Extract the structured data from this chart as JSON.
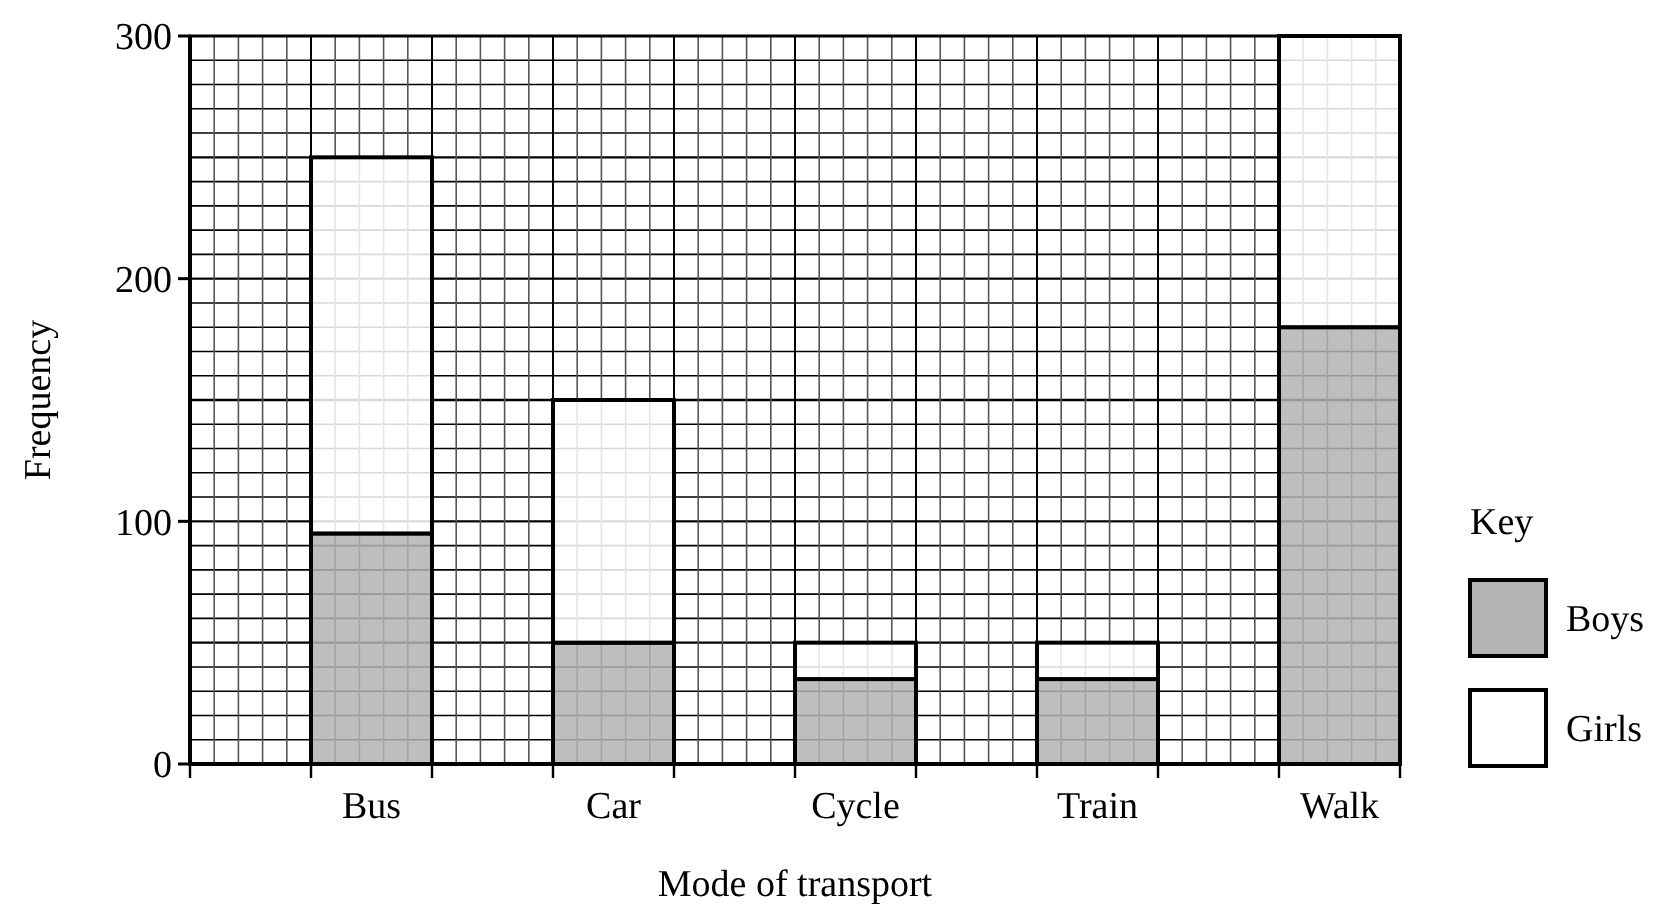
{
  "chart_data": {
    "type": "bar",
    "stacked": true,
    "xlabel": "Mode of transport",
    "ylabel": "Frequency",
    "legend_title": "Key",
    "legend": "right",
    "categories": [
      "Bus",
      "Car",
      "Cycle",
      "Train",
      "Walk"
    ],
    "series": [
      {
        "name": "Boys",
        "color": "#b3b3b3",
        "values": [
          95,
          50,
          35,
          35,
          180
        ]
      },
      {
        "name": "Girls",
        "color": "#ffffff",
        "values": [
          155,
          100,
          15,
          15,
          120
        ]
      }
    ],
    "ylim": [
      0,
      300
    ],
    "yticks": [
      0,
      100,
      200,
      300
    ],
    "grid": true
  }
}
